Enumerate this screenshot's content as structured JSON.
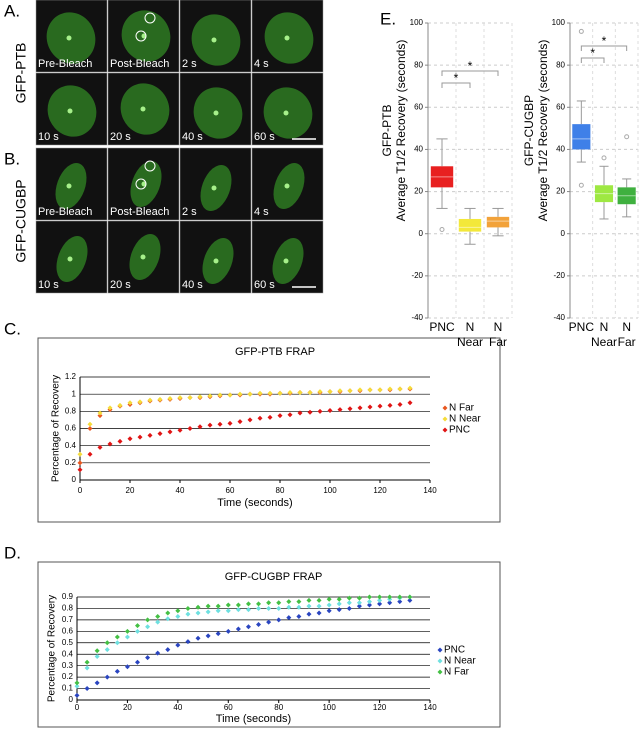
{
  "panels": [
    {
      "label": "A.",
      "side": "GFP-PTB",
      "frames": [
        "Pre-Bleach",
        "Post-Bleach",
        "2 s",
        "4 s",
        "10 s",
        "20 s",
        "40 s",
        "60 s"
      ]
    },
    {
      "label": "B.",
      "side": "GFP-CUGBP",
      "frames": [
        "Pre-Bleach",
        "Post-Bleach",
        "2 s",
        "4 s",
        "10 s",
        "20 s",
        "40 s",
        "60 s"
      ]
    }
  ],
  "chart_labels": [
    "C.",
    "D.",
    "E."
  ],
  "chart_data": [
    {
      "type": "scatter",
      "title": "GFP-PTB FRAP",
      "xlabel": "Time (seconds)",
      "ylabel": "Percentage of Recovery",
      "xlim": [
        0,
        140
      ],
      "xticks": [
        0,
        20,
        40,
        60,
        80,
        100,
        120,
        140
      ],
      "ylim": [
        0,
        1.2
      ],
      "yticks": [
        0,
        0.2,
        0.4,
        0.6,
        0.8,
        1,
        1.2
      ],
      "grid": true,
      "legend": "right",
      "x": [
        0,
        4,
        8,
        12,
        16,
        20,
        24,
        28,
        32,
        36,
        40,
        44,
        48,
        52,
        56,
        60,
        64,
        68,
        72,
        76,
        80,
        84,
        88,
        92,
        96,
        100,
        104,
        108,
        112,
        116,
        120,
        124,
        128,
        132
      ],
      "series": [
        {
          "name": "N Far",
          "color": "#e8561e",
          "values": [
            0.2,
            0.6,
            0.75,
            0.82,
            0.86,
            0.88,
            0.9,
            0.92,
            0.93,
            0.94,
            0.95,
            0.96,
            0.96,
            0.97,
            0.98,
            0.99,
            0.99,
            1.0,
            1.0,
            1.0,
            1.01,
            1.01,
            1.02,
            1.02,
            1.02,
            1.03,
            1.03,
            1.04,
            1.04,
            1.05,
            1.05,
            1.05,
            1.06,
            1.06
          ]
        },
        {
          "name": "N Near",
          "color": "#f5dc3a",
          "values": [
            0.3,
            0.65,
            0.78,
            0.84,
            0.87,
            0.9,
            0.91,
            0.93,
            0.94,
            0.95,
            0.96,
            0.96,
            0.97,
            0.98,
            0.99,
            0.99,
            1.0,
            1.0,
            1.01,
            1.01,
            1.01,
            1.02,
            1.02,
            1.02,
            1.03,
            1.03,
            1.04,
            1.04,
            1.05,
            1.05,
            1.05,
            1.06,
            1.06,
            1.07
          ]
        },
        {
          "name": "PNC",
          "color": "#e01515",
          "values": [
            0.12,
            0.3,
            0.38,
            0.42,
            0.45,
            0.48,
            0.5,
            0.52,
            0.54,
            0.56,
            0.58,
            0.6,
            0.62,
            0.64,
            0.65,
            0.66,
            0.68,
            0.7,
            0.72,
            0.73,
            0.75,
            0.76,
            0.78,
            0.79,
            0.8,
            0.81,
            0.82,
            0.83,
            0.84,
            0.85,
            0.86,
            0.87,
            0.88,
            0.9
          ]
        }
      ]
    },
    {
      "type": "scatter",
      "title": "GFP-CUGBP FRAP",
      "xlabel": "Time (seconds)",
      "ylabel": "Percentage of Recovery",
      "xlim": [
        0,
        140
      ],
      "xticks": [
        0,
        20,
        40,
        60,
        80,
        100,
        120,
        140
      ],
      "ylim": [
        0,
        0.9
      ],
      "yticks": [
        0,
        0.1,
        0.2,
        0.3,
        0.4,
        0.5,
        0.6,
        0.7,
        0.8,
        0.9
      ],
      "grid": true,
      "legend": "right",
      "x": [
        0,
        4,
        8,
        12,
        16,
        20,
        24,
        28,
        32,
        36,
        40,
        44,
        48,
        52,
        56,
        60,
        64,
        68,
        72,
        76,
        80,
        84,
        88,
        92,
        96,
        100,
        104,
        108,
        112,
        116,
        120,
        124,
        128,
        132
      ],
      "series": [
        {
          "name": "PNC",
          "color": "#2a45c0",
          "values": [
            0.04,
            0.1,
            0.15,
            0.2,
            0.25,
            0.29,
            0.33,
            0.37,
            0.41,
            0.44,
            0.48,
            0.51,
            0.54,
            0.56,
            0.58,
            0.6,
            0.62,
            0.64,
            0.66,
            0.68,
            0.7,
            0.72,
            0.73,
            0.75,
            0.76,
            0.78,
            0.79,
            0.8,
            0.82,
            0.83,
            0.84,
            0.85,
            0.86,
            0.87
          ]
        },
        {
          "name": "N Near",
          "color": "#6ee0e0",
          "values": [
            0.12,
            0.28,
            0.38,
            0.44,
            0.5,
            0.55,
            0.6,
            0.64,
            0.68,
            0.71,
            0.73,
            0.75,
            0.76,
            0.77,
            0.78,
            0.78,
            0.79,
            0.79,
            0.8,
            0.8,
            0.8,
            0.81,
            0.81,
            0.82,
            0.82,
            0.83,
            0.84,
            0.85,
            0.85,
            0.86,
            0.87,
            0.88,
            0.89,
            0.9
          ]
        },
        {
          "name": "N Far",
          "color": "#44c044",
          "values": [
            0.15,
            0.33,
            0.43,
            0.5,
            0.55,
            0.6,
            0.65,
            0.7,
            0.73,
            0.76,
            0.78,
            0.8,
            0.81,
            0.82,
            0.82,
            0.83,
            0.83,
            0.84,
            0.84,
            0.85,
            0.85,
            0.86,
            0.86,
            0.87,
            0.87,
            0.88,
            0.88,
            0.89,
            0.89,
            0.9,
            0.9,
            0.9,
            0.9,
            0.9
          ]
        }
      ]
    },
    {
      "type": "box",
      "title": "GFP-PTB",
      "ylabel": "Average T1/2 Recovery (seconds)",
      "ylim": [
        -40,
        100
      ],
      "yticks": [
        -40,
        -20,
        0,
        20,
        40,
        60,
        80,
        100
      ],
      "grid": true,
      "categories": [
        "PNC",
        "N Near",
        "N Far"
      ],
      "annotations": [
        "*",
        "*"
      ],
      "boxes": [
        {
          "color": "#e82020",
          "min": 12,
          "q1": 22,
          "median": 27,
          "q3": 32,
          "max": 45,
          "outliers": [
            2
          ]
        },
        {
          "color": "#f3e83a",
          "min": -5,
          "q1": 1,
          "median": 3,
          "q3": 7,
          "max": 12,
          "outliers": []
        },
        {
          "color": "#f2a23a",
          "min": -1,
          "q1": 3,
          "median": 6,
          "q3": 8,
          "max": 12,
          "outliers": []
        }
      ]
    },
    {
      "type": "box",
      "title": "GFP-CUGBP",
      "ylabel": "Average T1/2 Recovery (seconds)",
      "ylim": [
        -40,
        100
      ],
      "yticks": [
        -40,
        -20,
        0,
        20,
        40,
        60,
        80,
        100
      ],
      "grid": true,
      "categories": [
        "PNC",
        "N Near",
        "N Far"
      ],
      "annotations": [
        "*",
        "*"
      ],
      "boxes": [
        {
          "color": "#3f80e8",
          "min": 34,
          "q1": 40,
          "median": 45,
          "q3": 52,
          "max": 63,
          "outliers": [
            23,
            96
          ]
        },
        {
          "color": "#9ee842",
          "min": 7,
          "q1": 15,
          "median": 19,
          "q3": 23,
          "max": 32,
          "outliers": [
            36
          ]
        },
        {
          "color": "#3fb03f",
          "min": 8,
          "q1": 14,
          "median": 18,
          "q3": 22,
          "max": 26,
          "outliers": [
            46
          ]
        }
      ]
    }
  ]
}
